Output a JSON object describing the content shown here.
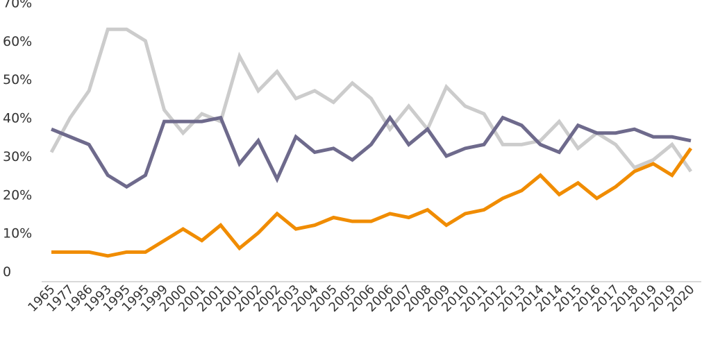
{
  "chart_data": {
    "type": "line",
    "title": "",
    "xlabel": "",
    "ylabel": "",
    "ylim": [
      0,
      70
    ],
    "yticks": [
      "0",
      "10%",
      "20%",
      "30%",
      "40%",
      "50%",
      "60%",
      "70%"
    ],
    "grid": false,
    "legend": "none",
    "categories": [
      "1965",
      "1977",
      "1986",
      "1993",
      "1995",
      "1995",
      "1999",
      "2000",
      "2001",
      "2001",
      "2001",
      "2002",
      "2002",
      "2003",
      "2004",
      "2005",
      "2005",
      "2006",
      "2006",
      "2007",
      "2008",
      "2009",
      "2010",
      "2011",
      "2012",
      "2013",
      "2014",
      "2014",
      "2015",
      "2016",
      "2017",
      "2018",
      "2019",
      "2019",
      "2020"
    ],
    "series": [
      {
        "color": "#cccccc",
        "values": [
          31,
          40,
          47,
          63,
          63,
          60,
          42,
          36,
          41,
          39,
          56,
          47,
          52,
          45,
          47,
          44,
          49,
          45,
          37,
          43,
          37,
          48,
          43,
          41,
          33,
          33,
          34,
          39,
          32,
          36,
          33,
          27,
          29,
          33,
          26
        ]
      },
      {
        "color": "#6e6a8c",
        "values": [
          37,
          35,
          33,
          25,
          22,
          25,
          39,
          39,
          39,
          40,
          28,
          34,
          24,
          35,
          31,
          32,
          29,
          33,
          40,
          33,
          37,
          30,
          32,
          33,
          40,
          38,
          33,
          31,
          38,
          36,
          36,
          37,
          35,
          35,
          34
        ]
      },
      {
        "color": "#f08c00",
        "values": [
          5,
          5,
          5,
          4,
          5,
          5,
          8,
          11,
          8,
          12,
          6,
          10,
          15,
          11,
          12,
          14,
          13,
          13,
          15,
          14,
          16,
          12,
          15,
          16,
          19,
          21,
          25,
          20,
          23,
          19,
          22,
          26,
          28,
          25,
          32
        ]
      }
    ]
  }
}
